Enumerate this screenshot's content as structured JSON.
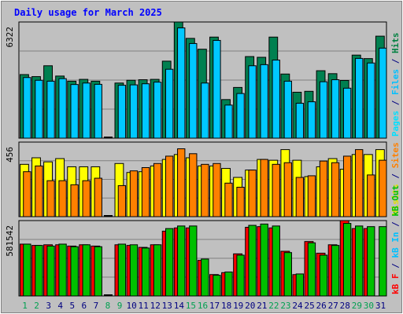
{
  "chart_data": {
    "type": "bar",
    "title": "Daily usage for March 2025",
    "categories": [
      "1",
      "2",
      "3",
      "4",
      "5",
      "6",
      "7",
      "8",
      "9",
      "10",
      "11",
      "12",
      "13",
      "14",
      "15",
      "16",
      "17",
      "18",
      "19",
      "20",
      "21",
      "22",
      "23",
      "24",
      "25",
      "26",
      "27",
      "28",
      "29",
      "30",
      "31"
    ],
    "weekend_days": [
      "1",
      "2",
      "8",
      "9",
      "15",
      "16",
      "22",
      "23",
      "29",
      "30"
    ],
    "panels": [
      {
        "name": "hits-files-pages",
        "max_label": "6322",
        "ymax": 6322,
        "legend": [
          "Pages",
          "/",
          "Files",
          "/",
          "Hits"
        ],
        "legend_colors": [
          "#00e0ff",
          "#000080",
          "#00c0ff",
          "#000080",
          "#008040"
        ],
        "series": [
          {
            "name": "Hits",
            "color": "#008050",
            "values": [
              3460,
              3350,
              3940,
              3380,
              3100,
              3200,
              3100,
              0,
              3000,
              3150,
              3180,
              3200,
              4190,
              6322,
              5430,
              4840,
              5500,
              2100,
              2760,
              4440,
              4400,
              5500,
              3490,
              2500,
              2550,
              3670,
              3510,
              3140,
              4520,
              4330,
              5550
            ]
          },
          {
            "name": "Files",
            "color": "#00c8ff",
            "values": [
              3300,
              3150,
              3100,
              3240,
              2920,
              3000,
              2930,
              0,
              2880,
              2900,
              2960,
              3050,
              3750,
              6000,
              5150,
              3000,
              5320,
              1800,
              2430,
              3940,
              4000,
              4250,
              3100,
              1900,
              1980,
              3070,
              3180,
              2720,
              4340,
              4090,
              4900
            ]
          }
        ]
      },
      {
        "name": "visits-sites",
        "max_label": "456",
        "ymax": 456,
        "legend": [
          "Visits",
          "/",
          "Sites"
        ],
        "legend_colors": [
          "#e0e000",
          "#000080",
          "#ff8000"
        ],
        "series": [
          {
            "name": "Visits",
            "color": "#ffff00",
            "values": [
              320,
              360,
              335,
              355,
              305,
              305,
              305,
              0,
              325,
              270,
              275,
              310,
              350,
              380,
              360,
              310,
              310,
              295,
              240,
              285,
              350,
              345,
              410,
              345,
              245,
              305,
              355,
              290,
              380,
              380,
              410
            ]
          },
          {
            "name": "Sites",
            "color": "#ff8000",
            "values": [
              275,
              310,
              220,
              220,
              195,
              220,
              235,
              0,
              190,
              280,
              300,
              325,
              370,
              415,
              385,
              320,
              325,
              205,
              180,
              285,
              350,
              320,
              330,
              240,
              250,
              340,
              330,
              370,
              410,
              255,
              345
            ]
          }
        ]
      },
      {
        "name": "kbytes",
        "max_label": "581542",
        "ymax": 581542,
        "legend": [
          "kB F",
          "/",
          "kB In",
          "/",
          "kB Out"
        ],
        "legend_colors": [
          "#ff0000",
          "#000080",
          "#00c0ff",
          "#000080",
          "#00c000"
        ],
        "series": [
          {
            "name": "kB F",
            "color": "#ff0000",
            "values": [
              400000,
              390000,
              395000,
              395000,
              385000,
              395000,
              385000,
              0,
              395000,
              390000,
              375000,
              395000,
              500000,
              525000,
              525000,
              275000,
              165000,
              180000,
              325000,
              530000,
              535000,
              525000,
              345000,
              165000,
              420000,
              330000,
              395000,
              581542,
              520000,
              520000,
              0
            ]
          },
          {
            "name": "kB Out",
            "color": "#00c000",
            "values": [
              400000,
              390000,
              385000,
              400000,
              380000,
              395000,
              380000,
              0,
              400000,
              395000,
              370000,
              395000,
              520000,
              540000,
              540000,
              285000,
              160000,
              185000,
              315000,
              545000,
              555000,
              540000,
              335000,
              170000,
              410000,
              315000,
              390000,
              560000,
              540000,
              535000,
              535000
            ]
          }
        ]
      }
    ],
    "colors": {
      "background": "#c0c0c0",
      "plot": "#c0c0c0",
      "grid": "#808080",
      "title": "#0000ff",
      "weekday_label": "#000080",
      "weekend_label": "#00a050"
    }
  }
}
